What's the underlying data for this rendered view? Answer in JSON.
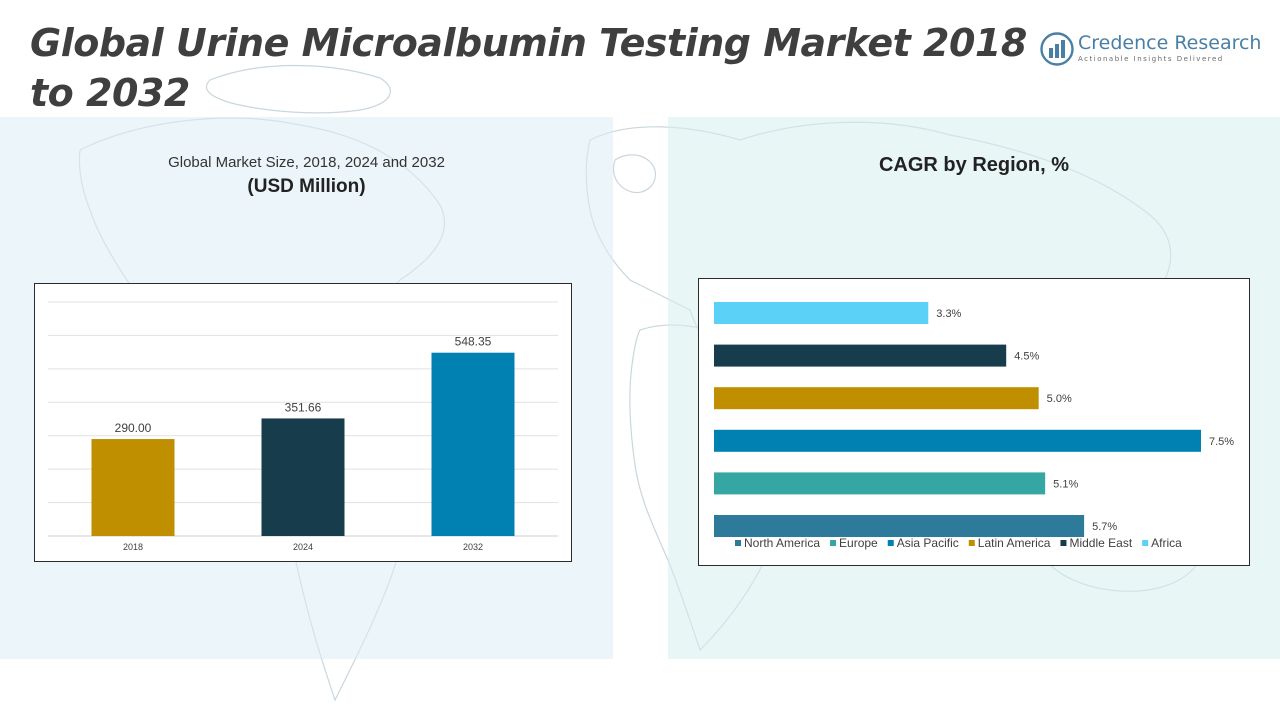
{
  "title": "Global Urine Microalbumin Testing Market 2018 to 2032",
  "brand": {
    "name": "Credence Research",
    "tagline": "Actionable Insights Delivered"
  },
  "colors": {
    "north_america": "#2e7a9a",
    "europe": "#35a6a2",
    "asia_pacific": "#0181b2",
    "latin_america": "#bf8f00",
    "middle_east": "#173c4c",
    "africa": "#5bd1f7"
  },
  "left_panel": {
    "subtitle": "Global Market Size, 2018, 2024 and 2032",
    "unit": "(USD Million)"
  },
  "right_panel": {
    "title": "CAGR by Region, %"
  },
  "chart_data": [
    {
      "type": "bar",
      "title": "Global Market Size, 2018, 2024 and 2032",
      "subtitle": "(USD Million)",
      "categories": [
        "2018",
        "2024",
        "2032"
      ],
      "values": [
        290.0,
        351.66,
        548.35
      ],
      "data_labels": [
        "290.00",
        "351.66",
        "548.35"
      ],
      "bar_colors": [
        "#bf8f00",
        "#173c4c",
        "#0181b2"
      ],
      "ylim": [
        0,
        700
      ],
      "grid": true
    },
    {
      "type": "bar",
      "orientation": "horizontal",
      "title": "CAGR by Region, %",
      "categories": [
        "North America",
        "Europe",
        "Asia Pacific",
        "Latin America",
        "Middle East",
        "Africa"
      ],
      "values": [
        5.7,
        5.1,
        7.5,
        5.0,
        4.5,
        3.3
      ],
      "data_labels": [
        "5.7%",
        "5.1%",
        "7.5%",
        "5.0%",
        "4.5%",
        "3.3%"
      ],
      "bar_colors": [
        "#2e7a9a",
        "#35a6a2",
        "#0181b2",
        "#bf8f00",
        "#173c4c",
        "#5bd1f7"
      ],
      "xlim": [
        0,
        7.5
      ],
      "legend": "bottom",
      "grid": false
    }
  ]
}
